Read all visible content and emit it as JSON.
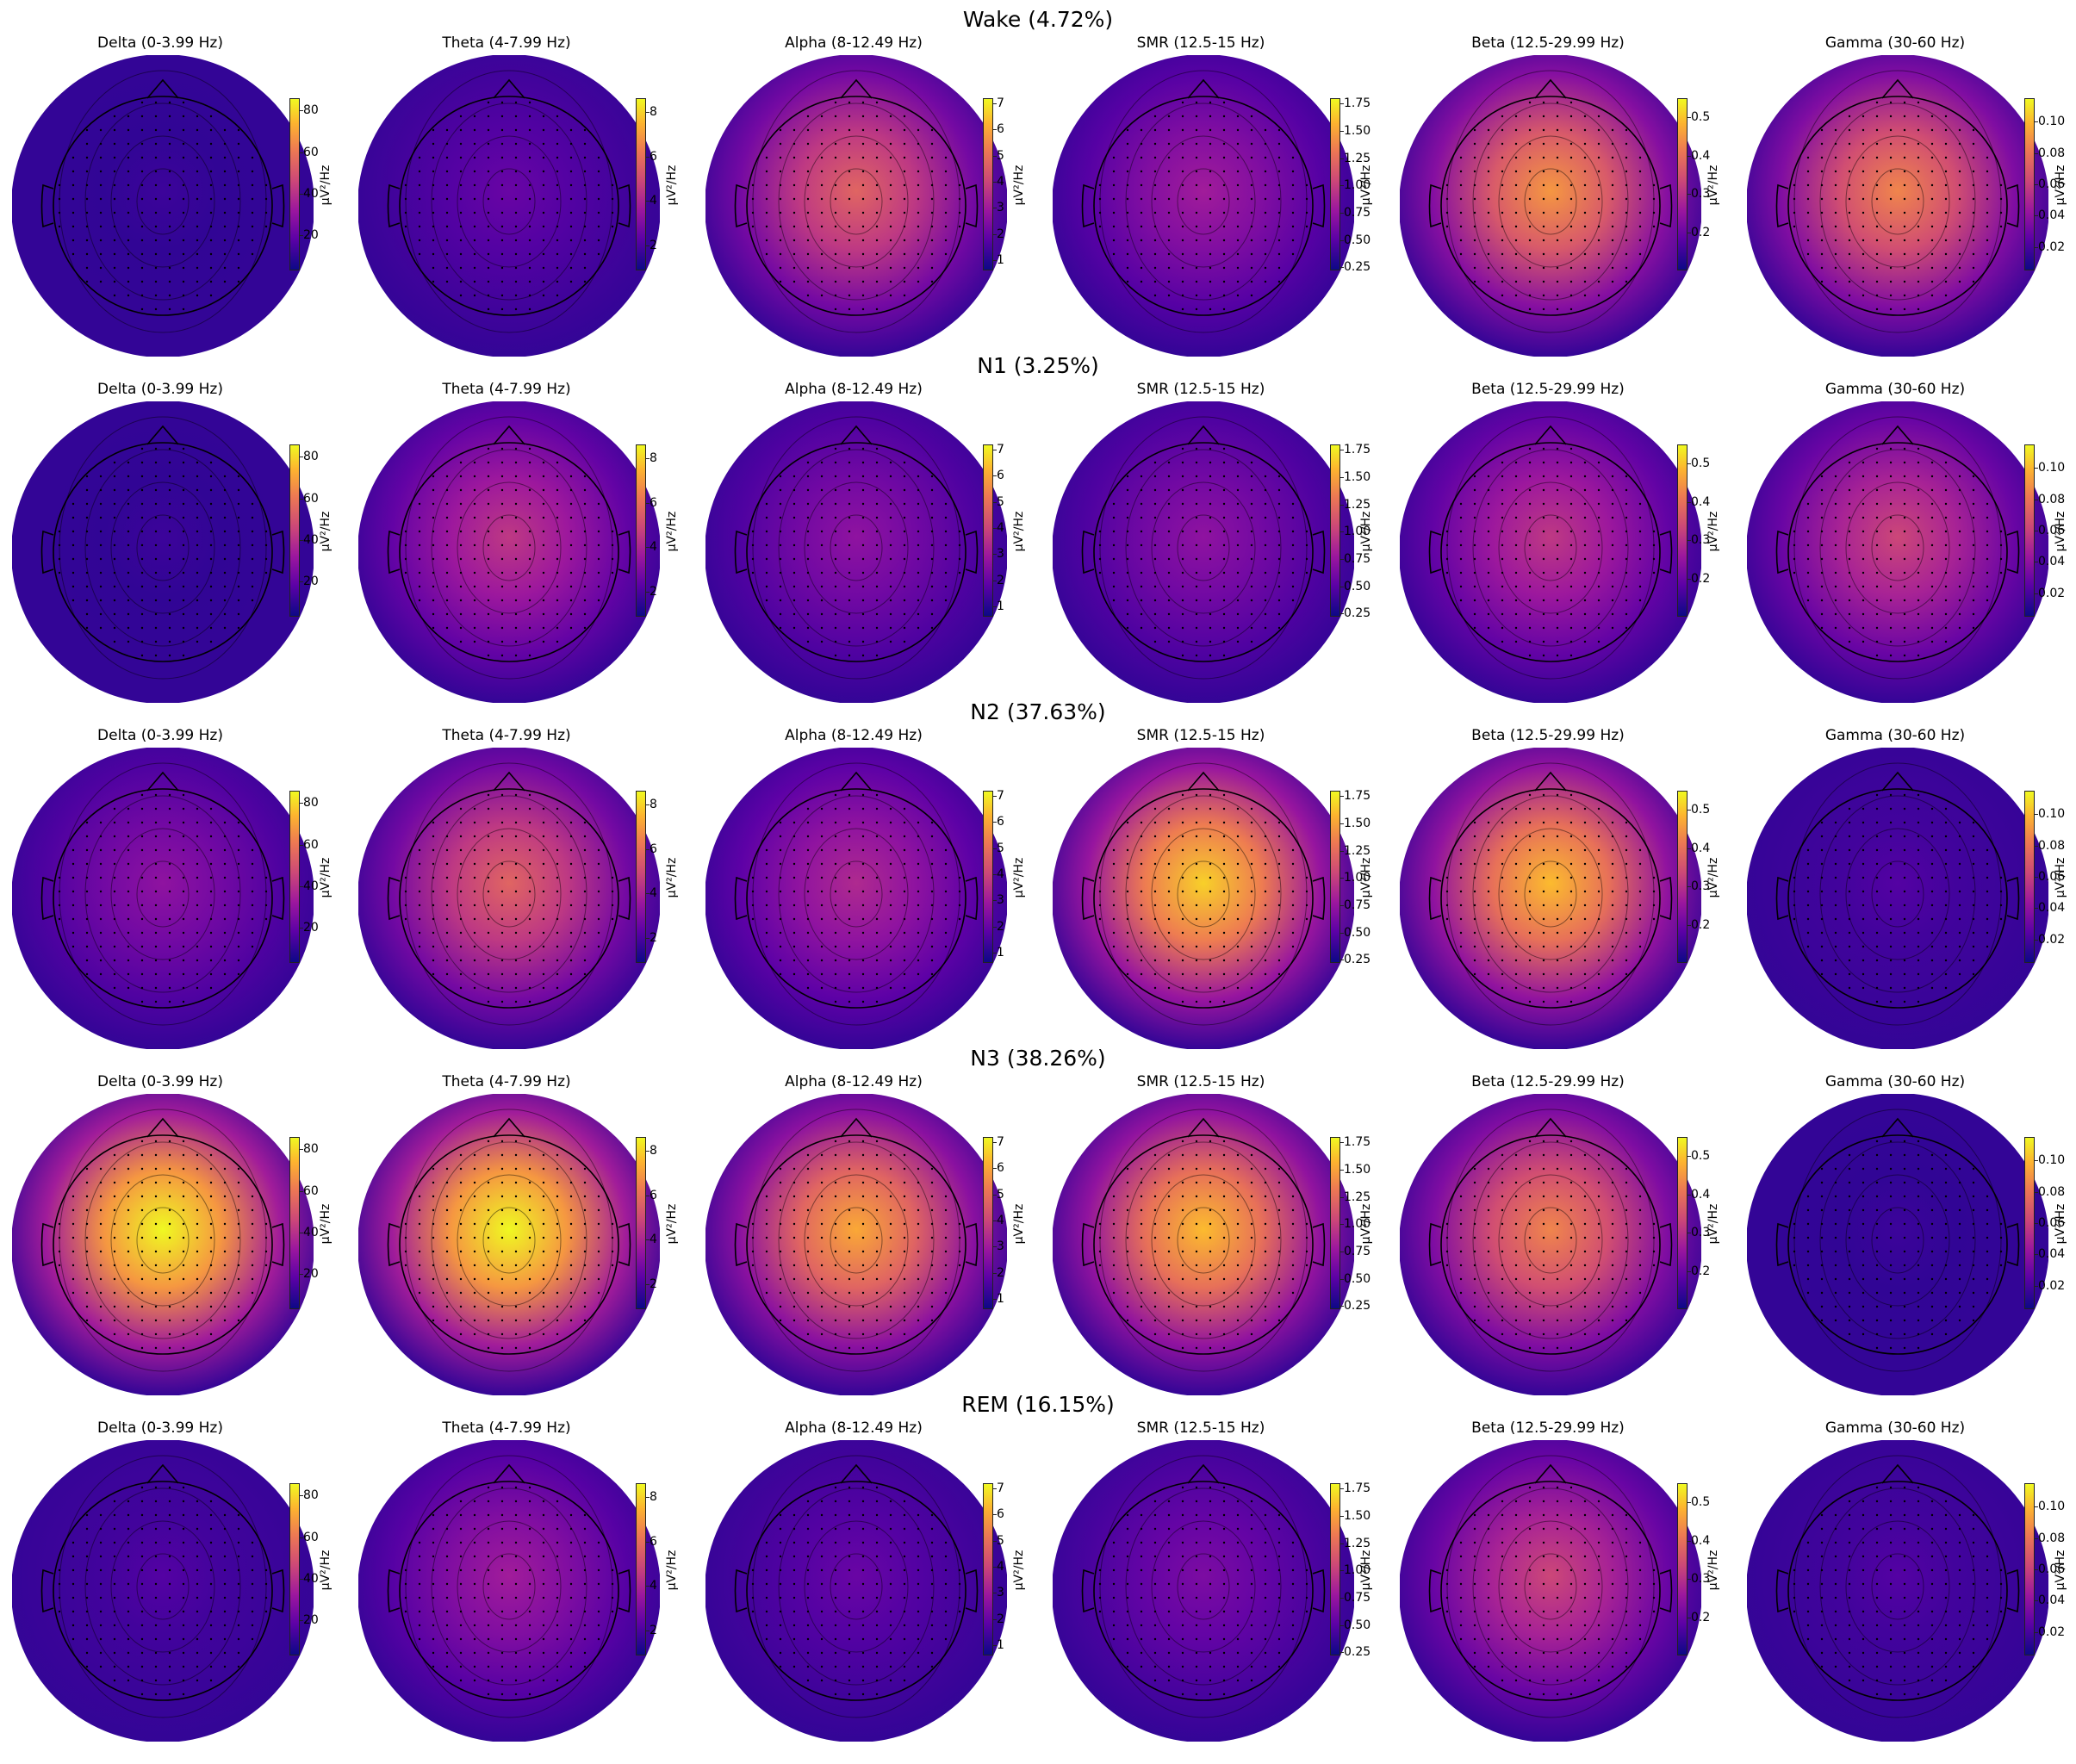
{
  "chart_data": {
    "type": "heatmap",
    "subtype": "EEG scalp topographic maps",
    "colormap": "plasma",
    "colorbar_label": "µV²/Hz",
    "bands": [
      {
        "name": "Delta (0-3.99 Hz)",
        "range": [
          3,
          86
        ],
        "ticks": [
          20,
          40,
          60,
          80
        ]
      },
      {
        "name": "Theta (4-7.99 Hz)",
        "range": [
          0.9,
          8.6
        ],
        "ticks": [
          2,
          4,
          6,
          8
        ]
      },
      {
        "name": "Alpha (8-12.49 Hz)",
        "range": [
          0.6,
          7.2
        ],
        "ticks": [
          1,
          2,
          3,
          4,
          5,
          6,
          7
        ]
      },
      {
        "name": "SMR (12.5-15 Hz)",
        "range": [
          0.22,
          1.8
        ],
        "ticks": [
          "0.25",
          "0.50",
          "0.75",
          "1.00",
          "1.25",
          "1.50",
          "1.75"
        ]
      },
      {
        "name": "Beta (12.5-29.99 Hz)",
        "range": [
          0.1,
          0.55
        ],
        "ticks": [
          "0.2",
          "0.3",
          "0.4",
          "0.5"
        ]
      },
      {
        "name": "Gamma (30-60 Hz)",
        "range": [
          0.005,
          0.115
        ],
        "ticks": [
          "0.02",
          "0.04",
          "0.06",
          "0.08",
          "0.10"
        ]
      }
    ],
    "stages": [
      {
        "title": "Wake (4.72%)",
        "label": "Wake",
        "percent": 4.72,
        "relative_intensity": {
          "Delta": 0.1,
          "Theta": 0.2,
          "Alpha": 0.6,
          "SMR": 0.35,
          "Beta": 0.75,
          "Gamma": 0.7
        }
      },
      {
        "title": "N1 (3.25%)",
        "label": "N1",
        "percent": 3.25,
        "relative_intensity": {
          "Delta": 0.1,
          "Theta": 0.45,
          "Alpha": 0.3,
          "SMR": 0.3,
          "Beta": 0.45,
          "Gamma": 0.5
        }
      },
      {
        "title": "N2 (37.63%)",
        "label": "N2",
        "percent": 37.63,
        "relative_intensity": {
          "Delta": 0.3,
          "Theta": 0.6,
          "Alpha": 0.4,
          "SMR": 0.9,
          "Beta": 0.85,
          "Gamma": 0.15
        }
      },
      {
        "title": "N3 (38.26%)",
        "label": "N3",
        "percent": 38.26,
        "relative_intensity": {
          "Delta": 1.0,
          "Theta": 1.0,
          "Alpha": 0.8,
          "SMR": 0.85,
          "Beta": 0.7,
          "Gamma": 0.1
        }
      },
      {
        "title": "REM (16.15%)",
        "label": "REM",
        "percent": 16.15,
        "relative_intensity": {
          "Delta": 0.15,
          "Theta": 0.35,
          "Alpha": 0.2,
          "SMR": 0.25,
          "Beta": 0.5,
          "Gamma": 0.15
        }
      }
    ]
  }
}
